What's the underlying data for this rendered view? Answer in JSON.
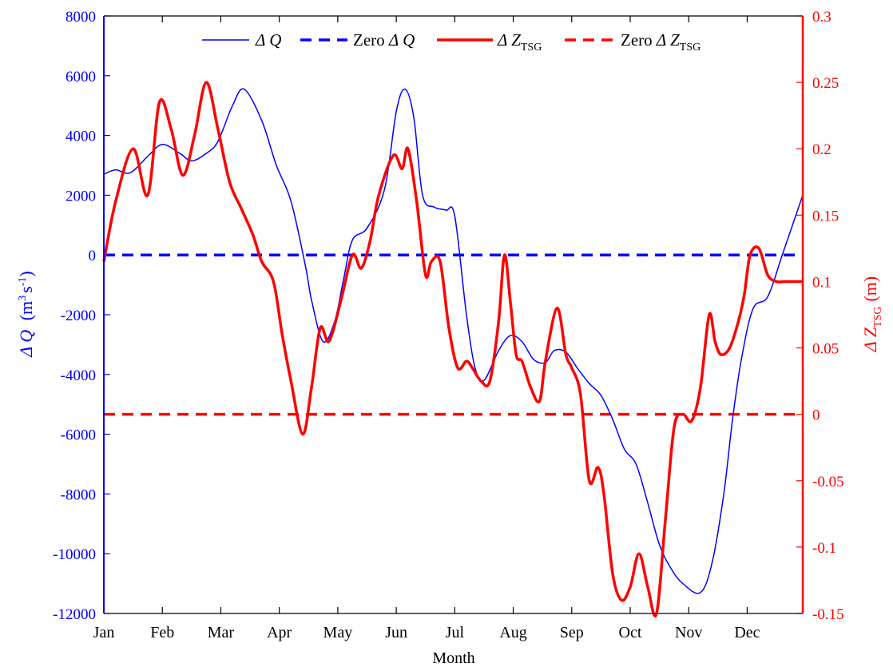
{
  "chart_data": {
    "type": "line",
    "xlabel": "Month",
    "x_ticks": [
      "Jan",
      "Feb",
      "Mar",
      "Apr",
      "May",
      "Jun",
      "Jul",
      "Aug",
      "Sep",
      "Oct",
      "Nov",
      "Dec"
    ],
    "xlim": [
      0,
      11.95
    ],
    "y_left": {
      "label_symbol": "Δ Q",
      "label_unit": "(m",
      "label_sup1": "3",
      "label_mid": "s",
      "label_sup2": "-1",
      "label_close": ")",
      "ylim": [
        -12000,
        8000
      ],
      "ticks": [
        "8000",
        "6000",
        "4000",
        "2000",
        "0",
        "-2000",
        "-4000",
        "-6000",
        "-8000",
        "-10000",
        "-12000"
      ],
      "tick_values": [
        8000,
        6000,
        4000,
        2000,
        0,
        -2000,
        -4000,
        -6000,
        -8000,
        -10000,
        -12000
      ],
      "color": "#0000ff"
    },
    "y_right": {
      "label_symbol": "Δ Z",
      "label_sub": "TSG",
      "label_unit": "(m)",
      "ylim": [
        -0.15,
        0.3
      ],
      "ticks": [
        "0.3",
        "0.25",
        "0.2",
        "0.15",
        "0.1",
        "0.05",
        "0",
        "-0.05",
        "-0.1",
        "-0.15"
      ],
      "tick_values": [
        0.3,
        0.25,
        0.2,
        0.15,
        0.1,
        0.05,
        0,
        -0.05,
        -0.1,
        -0.15
      ],
      "color": "#ff0000"
    },
    "legend": {
      "placement": "top",
      "entries": [
        {
          "symbol": "Δ Q",
          "prefix": "",
          "sub": "",
          "style": "solid-thin",
          "color": "#0000ff"
        },
        {
          "symbol": "Δ Q",
          "prefix": "Zero ",
          "sub": "",
          "style": "dashed",
          "color": "#0000ff"
        },
        {
          "symbol": "Δ Z",
          "prefix": "",
          "sub": "TSG",
          "style": "solid-thick",
          "color": "#ff0000"
        },
        {
          "symbol": "Δ Z",
          "prefix": "Zero ",
          "sub": "TSG",
          "style": "dashed",
          "color": "#ff0000"
        }
      ]
    },
    "series": [
      {
        "name": "Δ Q",
        "axis": "left",
        "color": "#0000ff",
        "x": [
          0,
          0.2,
          0.45,
          0.75,
          1.0,
          1.3,
          1.5,
          1.75,
          1.95,
          2.2,
          2.4,
          2.7,
          2.95,
          3.2,
          3.45,
          3.55,
          3.75,
          3.95,
          4.1,
          4.25,
          4.5,
          4.8,
          5.0,
          5.15,
          5.3,
          5.45,
          5.65,
          5.85,
          6.0,
          6.2,
          6.35,
          6.5,
          6.75,
          6.95,
          7.15,
          7.35,
          7.55,
          7.7,
          7.9,
          8.1,
          8.3,
          8.5,
          8.7,
          8.9,
          9.1,
          9.3,
          9.5,
          9.7,
          9.9,
          10.2,
          10.4,
          10.6,
          10.75,
          10.9,
          11.1,
          11.35,
          11.6,
          11.95
        ],
        "y": [
          2700,
          2850,
          2750,
          3300,
          3700,
          3400,
          3150,
          3400,
          3800,
          5000,
          5550,
          4500,
          3000,
          1800,
          -400,
          -1500,
          -2900,
          -2200,
          -800,
          500,
          900,
          2200,
          4800,
          5550,
          4600,
          2000,
          1600,
          1500,
          1300,
          -2000,
          -3800,
          -4200,
          -3200,
          -2700,
          -2900,
          -3500,
          -3600,
          -3200,
          -3250,
          -3800,
          -4300,
          -4700,
          -5500,
          -6500,
          -7000,
          -8300,
          -9700,
          -10500,
          -11000,
          -11300,
          -10300,
          -8000,
          -5500,
          -3500,
          -1800,
          -1400,
          0,
          2000
        ]
      },
      {
        "name": "Δ Z",
        "axis": "right",
        "color": "#ff0000",
        "x": [
          0,
          0.2,
          0.5,
          0.75,
          0.95,
          1.15,
          1.35,
          1.55,
          1.75,
          1.95,
          2.15,
          2.35,
          2.55,
          2.7,
          2.9,
          3.05,
          3.2,
          3.4,
          3.55,
          3.7,
          3.85,
          4.05,
          4.25,
          4.4,
          4.55,
          4.7,
          4.95,
          5.1,
          5.2,
          5.35,
          5.5,
          5.6,
          5.75,
          5.9,
          6.05,
          6.2,
          6.3,
          6.45,
          6.6,
          6.75,
          6.85,
          6.95,
          7.05,
          7.15,
          7.3,
          7.45,
          7.55,
          7.75,
          7.9,
          8.0,
          8.15,
          8.3,
          8.45,
          8.55,
          8.7,
          8.85,
          9.0,
          9.15,
          9.3,
          9.45,
          9.6,
          9.75,
          9.9,
          10.05,
          10.2,
          10.35,
          10.45,
          10.55,
          10.7,
          10.85,
          10.95,
          11.05,
          11.2,
          11.35,
          11.5,
          11.65,
          11.8,
          11.95
        ],
        "y": [
          0.115,
          0.16,
          0.2,
          0.165,
          0.235,
          0.215,
          0.18,
          0.21,
          0.25,
          0.215,
          0.175,
          0.155,
          0.135,
          0.115,
          0.1,
          0.06,
          0.025,
          -0.015,
          0.02,
          0.065,
          0.055,
          0.085,
          0.12,
          0.11,
          0.13,
          0.165,
          0.195,
          0.185,
          0.2,
          0.16,
          0.105,
          0.115,
          0.115,
          0.065,
          0.035,
          0.04,
          0.035,
          0.025,
          0.025,
          0.07,
          0.12,
          0.085,
          0.045,
          0.04,
          0.02,
          0.01,
          0.04,
          0.08,
          0.045,
          0.035,
          0.015,
          -0.05,
          -0.04,
          -0.06,
          -0.12,
          -0.14,
          -0.13,
          -0.105,
          -0.13,
          -0.15,
          -0.08,
          -0.01,
          0,
          -0.005,
          0.02,
          0.075,
          0.055,
          0.045,
          0.05,
          0.07,
          0.09,
          0.12,
          0.125,
          0.105,
          0.1,
          0.1,
          0.1,
          0.1
        ]
      },
      {
        "name": "Zero Δ Q",
        "axis": "left",
        "color": "#0000ff",
        "style": "dashed",
        "x": [
          0,
          11.95
        ],
        "y": [
          0,
          0
        ]
      },
      {
        "name": "Zero Δ Z",
        "axis": "right",
        "color": "#ff0000",
        "style": "dashed",
        "x": [
          0,
          11.95
        ],
        "y": [
          0,
          0
        ]
      }
    ]
  }
}
